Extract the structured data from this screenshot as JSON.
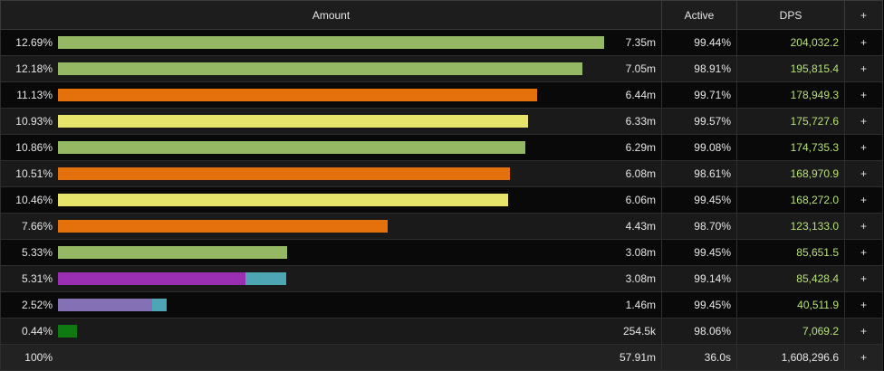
{
  "header": {
    "amount": "Amount",
    "active": "Active",
    "dps": "DPS",
    "toggle": "+"
  },
  "rows": [
    {
      "percent": "12.69%",
      "bar": [
        {
          "value": 12.69,
          "color": "#94b864"
        }
      ],
      "amount": "7.35m",
      "active": "99.44%",
      "dps": "204,032.2",
      "toggle": "+"
    },
    {
      "percent": "12.18%",
      "bar": [
        {
          "value": 12.18,
          "color": "#94b864"
        }
      ],
      "amount": "7.05m",
      "active": "98.91%",
      "dps": "195,815.4",
      "toggle": "+"
    },
    {
      "percent": "11.13%",
      "bar": [
        {
          "value": 11.13,
          "color": "#e4710b"
        }
      ],
      "amount": "6.44m",
      "active": "99.71%",
      "dps": "178,949.3",
      "toggle": "+"
    },
    {
      "percent": "10.93%",
      "bar": [
        {
          "value": 10.93,
          "color": "#e6e46a"
        }
      ],
      "amount": "6.33m",
      "active": "99.57%",
      "dps": "175,727.6",
      "toggle": "+"
    },
    {
      "percent": "10.86%",
      "bar": [
        {
          "value": 10.86,
          "color": "#94b864"
        }
      ],
      "amount": "6.29m",
      "active": "99.08%",
      "dps": "174,735.3",
      "toggle": "+"
    },
    {
      "percent": "10.51%",
      "bar": [
        {
          "value": 10.51,
          "color": "#e4710b"
        }
      ],
      "amount": "6.08m",
      "active": "98.61%",
      "dps": "168,970.9",
      "toggle": "+"
    },
    {
      "percent": "10.46%",
      "bar": [
        {
          "value": 10.46,
          "color": "#e6e46a"
        }
      ],
      "amount": "6.06m",
      "active": "99.45%",
      "dps": "168,272.0",
      "toggle": "+"
    },
    {
      "percent": "7.66%",
      "bar": [
        {
          "value": 7.66,
          "color": "#e4710b"
        }
      ],
      "amount": "4.43m",
      "active": "98.70%",
      "dps": "123,133.0",
      "toggle": "+"
    },
    {
      "percent": "5.33%",
      "bar": [
        {
          "value": 5.33,
          "color": "#94b864"
        }
      ],
      "amount": "3.08m",
      "active": "99.45%",
      "dps": "85,651.5",
      "toggle": "+"
    },
    {
      "percent": "5.31%",
      "bar": [
        {
          "value": 4.36,
          "color": "#9a2fb4"
        },
        {
          "value": 0.95,
          "color": "#4ea6b4"
        }
      ],
      "amount": "3.08m",
      "active": "99.14%",
      "dps": "85,428.4",
      "toggle": "+"
    },
    {
      "percent": "2.52%",
      "bar": [
        {
          "value": 2.19,
          "color": "#8470b4"
        },
        {
          "value": 0.33,
          "color": "#4ea6b4"
        }
      ],
      "amount": "1.46m",
      "active": "99.45%",
      "dps": "40,511.9",
      "toggle": "+"
    },
    {
      "percent": "0.44%",
      "bar": [
        {
          "value": 0.44,
          "color": "#0f7a12"
        }
      ],
      "amount": "254.5k",
      "active": "98.06%",
      "dps": "7,069.2",
      "toggle": "+"
    }
  ],
  "total": {
    "percent": "100%",
    "amount": "57.91m",
    "active": "36.0s",
    "dps": "1,608,296.6",
    "toggle": "+"
  }
}
